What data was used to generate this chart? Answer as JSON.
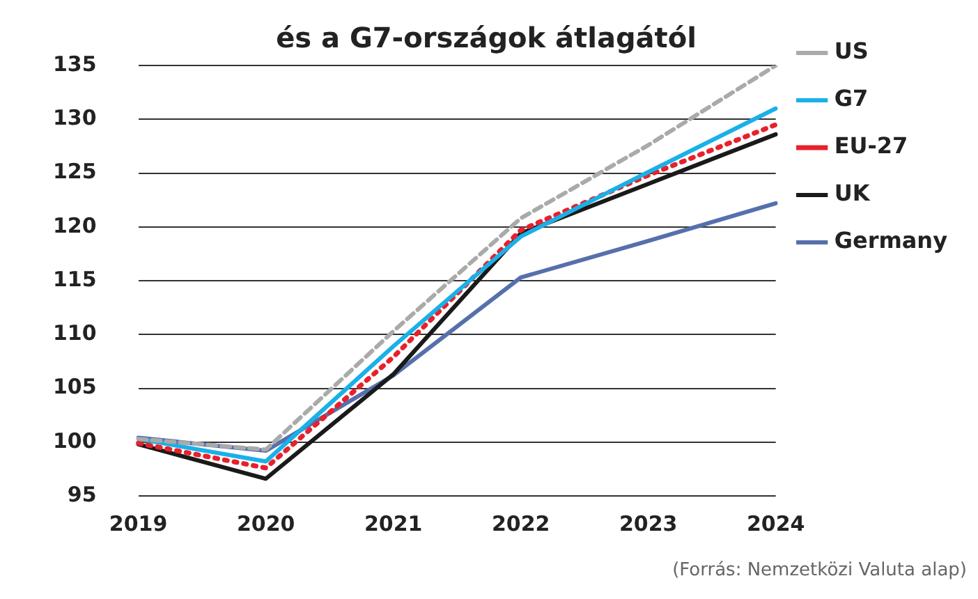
{
  "chart_data": {
    "type": "line",
    "title": "és a G7-országok átlagától",
    "categories": [
      "2019",
      "2020",
      "2021",
      "2022",
      "2023",
      "2024"
    ],
    "series": [
      {
        "name": "US",
        "color": "#aaaaaa",
        "line_style": "dashed",
        "values": [
          100.3,
          99.3,
          110.3,
          120.8,
          127.6,
          135
        ]
      },
      {
        "name": "G7",
        "color": "#1ab0e8",
        "line_style": "solid",
        "values": [
          100.3,
          98.2,
          108.9,
          119.1,
          125.1,
          131.0
        ]
      },
      {
        "name": "EU-27",
        "color": "#e8202a",
        "line_style": "dotted",
        "values": [
          99.9,
          97.6,
          107.9,
          119.7,
          124.8,
          129.5
        ]
      },
      {
        "name": "UK",
        "color": "#1a1a1a",
        "line_style": "solid",
        "values": [
          99.8,
          96.6,
          106.3,
          119.4,
          124.0,
          128.6
        ]
      },
      {
        "name": "Germany",
        "color": "#5670ad",
        "line_style": "solid",
        "values": [
          100.4,
          99.2,
          106.2,
          115.3,
          118.7,
          122.2
        ]
      }
    ],
    "ylim": [
      95,
      135
    ],
    "yticks": [
      95,
      100,
      105,
      110,
      115,
      120,
      125,
      130,
      135
    ],
    "grid": "y",
    "legend": "right",
    "marker": "none",
    "annotations": [
      "(Forrás: Nemzetközi Valuta alap)"
    ]
  }
}
